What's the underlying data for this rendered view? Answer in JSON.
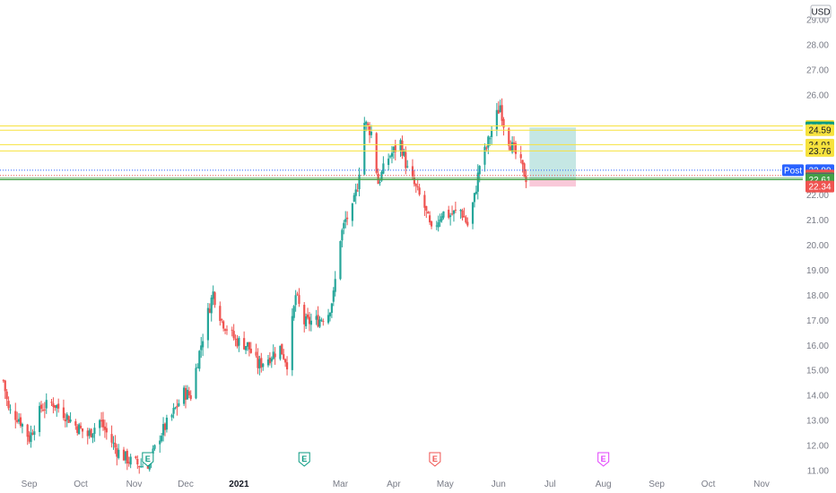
{
  "currency_label": "USD",
  "chart_data": {
    "type": "candlestick",
    "ylim": [
      11,
      29.5
    ],
    "y_ticks": [
      11,
      12,
      13,
      14,
      15,
      16,
      17,
      18,
      19,
      20,
      21,
      22,
      23,
      24,
      25,
      26,
      27,
      28,
      29
    ],
    "y_tick_labels": [
      "11.00",
      "12.00",
      "13.00",
      "14.00",
      "15.00",
      "16.00",
      "17.00",
      "18.00",
      "19.00",
      "20.00",
      "21.00",
      "22.00",
      "23.00",
      "24.00",
      "25.00",
      "26.00",
      "27.00",
      "28.00",
      "29.00"
    ],
    "x_range": [
      "2020-08-15",
      "2021-11-25"
    ],
    "x_ticks": [
      {
        "label": "Sep",
        "date": "2020-09-01",
        "bold": false
      },
      {
        "label": "Oct",
        "date": "2020-10-01",
        "bold": false
      },
      {
        "label": "Nov",
        "date": "2020-11-01",
        "bold": false
      },
      {
        "label": "Dec",
        "date": "2020-12-01",
        "bold": false
      },
      {
        "label": "2021",
        "date": "2021-01-01",
        "bold": true
      },
      {
        "label": "Mar",
        "date": "2021-03-01",
        "bold": false
      },
      {
        "label": "Apr",
        "date": "2021-04-01",
        "bold": false
      },
      {
        "label": "May",
        "date": "2021-05-01",
        "bold": false
      },
      {
        "label": "Jun",
        "date": "2021-06-01",
        "bold": false
      },
      {
        "label": "Jul",
        "date": "2021-07-01",
        "bold": false
      },
      {
        "label": "Aug",
        "date": "2021-08-01",
        "bold": false
      },
      {
        "label": "Sep",
        "date": "2021-09-01",
        "bold": false
      },
      {
        "label": "Oct",
        "date": "2021-10-01",
        "bold": false
      },
      {
        "label": "Nov",
        "date": "2021-11-01",
        "bold": false
      }
    ],
    "price_path": [
      [
        "2020-08-17",
        14.6
      ],
      [
        "2020-08-20",
        13.4
      ],
      [
        "2020-08-26",
        13.1
      ],
      [
        "2020-09-01",
        12.3
      ],
      [
        "2020-09-08",
        13.5
      ],
      [
        "2020-09-15",
        13.7
      ],
      [
        "2020-09-21",
        13.3
      ],
      [
        "2020-09-28",
        12.8
      ],
      [
        "2020-10-05",
        12.4
      ],
      [
        "2020-10-12",
        13.0
      ],
      [
        "2020-10-16",
        12.5
      ],
      [
        "2020-10-22",
        11.8
      ],
      [
        "2020-10-29",
        11.4
      ],
      [
        "2020-11-05",
        11.2
      ],
      [
        "2020-11-10",
        11.3
      ],
      [
        "2020-11-16",
        12.4
      ],
      [
        "2020-11-23",
        13.2
      ],
      [
        "2020-11-30",
        14.1
      ],
      [
        "2020-12-04",
        14.0
      ],
      [
        "2020-12-08",
        15.4
      ],
      [
        "2020-12-14",
        17.3
      ],
      [
        "2020-12-17",
        18.1
      ],
      [
        "2020-12-22",
        17.0
      ],
      [
        "2020-12-30",
        16.2
      ],
      [
        "2021-01-06",
        16.0
      ],
      [
        "2021-01-12",
        15.2
      ],
      [
        "2021-01-18",
        15.5
      ],
      [
        "2021-01-25",
        15.9
      ],
      [
        "2021-01-29",
        15.3
      ],
      [
        "2021-02-03",
        18.0
      ],
      [
        "2021-02-08",
        16.9
      ],
      [
        "2021-02-16",
        17.0
      ],
      [
        "2021-02-22",
        17.3
      ],
      [
        "2021-02-25",
        18.0
      ],
      [
        "2021-03-01",
        20.3
      ],
      [
        "2021-03-04",
        21.0
      ],
      [
        "2021-03-08",
        21.4
      ],
      [
        "2021-03-11",
        22.4
      ],
      [
        "2021-03-15",
        24.9
      ],
      [
        "2021-03-19",
        24.5
      ],
      [
        "2021-03-23",
        22.5
      ],
      [
        "2021-03-29",
        23.5
      ],
      [
        "2021-04-05",
        24.1
      ],
      [
        "2021-04-09",
        23.0
      ],
      [
        "2021-04-13",
        22.4
      ],
      [
        "2021-04-19",
        21.5
      ],
      [
        "2021-04-23",
        20.5
      ],
      [
        "2021-04-29",
        21.3
      ],
      [
        "2021-05-04",
        21.2
      ],
      [
        "2021-05-10",
        21.4
      ],
      [
        "2021-05-14",
        20.8
      ],
      [
        "2021-05-18",
        21.9
      ],
      [
        "2021-05-21",
        23.2
      ],
      [
        "2021-05-25",
        23.9
      ],
      [
        "2021-05-29",
        24.8
      ],
      [
        "2021-06-02",
        25.6
      ],
      [
        "2021-06-05",
        24.5
      ],
      [
        "2021-06-09",
        23.9
      ],
      [
        "2021-06-14",
        23.2
      ],
      [
        "2021-06-17",
        22.7
      ]
    ],
    "h_lines": [
      {
        "price": 24.76,
        "color": "#f7e23d"
      },
      {
        "price": 24.59,
        "color": "#f7e23d"
      },
      {
        "price": 24.01,
        "color": "#f7e23d"
      },
      {
        "price": 23.76,
        "color": "#f7e23d"
      },
      {
        "price": 22.67,
        "color": "#43a047"
      },
      {
        "price": 22.61,
        "color": "#43a047"
      }
    ],
    "dotted_lines": [
      {
        "price": 22.99,
        "color": "#2962ff"
      },
      {
        "price": 22.78,
        "color": "#ef5350"
      }
    ],
    "position_box": {
      "start": "2021-06-19",
      "end": "2021-07-16",
      "entry": 22.62,
      "target": 24.7,
      "stop": 22.34,
      "profit_color": "#b2dfdb",
      "loss_color": "#f8bbd0"
    },
    "price_tags": [
      {
        "label": "24.76",
        "price": 24.76,
        "bg": "#f7e23d",
        "fg": "#131722"
      },
      {
        "label": "24.70",
        "price": 24.7,
        "bg": "#089981",
        "fg": "#ffffff"
      },
      {
        "label": "24.59",
        "price": 24.59,
        "bg": "#f7e23d",
        "fg": "#131722"
      },
      {
        "label": "24.01",
        "price": 24.01,
        "bg": "#f7e23d",
        "fg": "#131722"
      },
      {
        "label": "23.76",
        "price": 23.76,
        "bg": "#f7e23d",
        "fg": "#131722"
      },
      {
        "label": "22.99",
        "price": 22.99,
        "bg": "#2962ff",
        "fg": "#ffffff"
      },
      {
        "label": "22.78",
        "price": 22.78,
        "bg": "#ef5350",
        "fg": "#ffffff"
      },
      {
        "label": "22.67",
        "price": 22.67,
        "bg": "#43a047",
        "fg": "#ffffff"
      },
      {
        "label": "22.65",
        "price": 22.65,
        "bg": "#5d606b",
        "fg": "#ffffff"
      },
      {
        "label": "22.61",
        "price": 22.61,
        "bg": "#43a047",
        "fg": "#ffffff"
      },
      {
        "label": "22.34",
        "price": 22.34,
        "bg": "#ef5350",
        "fg": "#ffffff"
      }
    ],
    "post_tag": {
      "label": "Post",
      "price": 22.99,
      "bg": "#2962ff",
      "fg": "#ffffff"
    },
    "earnings_markers": [
      {
        "label": "E",
        "date": "2020-11-09",
        "color": "#089981"
      },
      {
        "label": "E",
        "date": "2021-02-08",
        "color": "#089981"
      },
      {
        "label": "E",
        "date": "2021-04-25",
        "color": "#ef5350"
      },
      {
        "label": "E",
        "date": "2021-08-01",
        "color": "#e040fb"
      }
    ],
    "up_color": "#26a69a",
    "down_color": "#ef5350"
  }
}
